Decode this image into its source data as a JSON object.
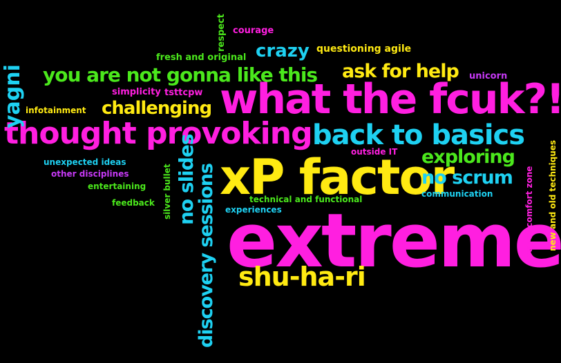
{
  "colors": {
    "background": "#000000",
    "magenta": "#ff1fe0",
    "cyan": "#1ed1f2",
    "yellow": "#ffea12",
    "green": "#4be81c",
    "purple": "#c639f5"
  },
  "words": {
    "extreme": "extreme",
    "what_the_fcuk": "what the fcuk?!",
    "xp_factor": "xP factor",
    "thought_provoking": "thought provoking",
    "back_to_basics": "back to basics",
    "shu_ha_ri": "shu-ha-ri",
    "discovery_sessions": "discovery sessions",
    "no_slides": "no slides",
    "you_are_not_gonna_like_this": "you are not gonna like this",
    "ask_for_help": "ask for help",
    "challenging": "challenging",
    "yagni": "yagni",
    "crazy": "crazy",
    "exploring": "exploring",
    "no_scrum": "no scrum",
    "questioning_agile": "questioning agile",
    "fresh_and_original": "fresh and original",
    "courage": "courage",
    "respect": "respect",
    "unicorn": "unicorn",
    "simplicity": "simplicity",
    "tsttcpw": "tsttcpw",
    "infotainment": "infotainment",
    "outside_it": "outside IT",
    "unexpected_ideas": "unexpected ideas",
    "other_disciplines": "other disciplines",
    "entertaining": "entertaining",
    "feedback": "feedback",
    "silver_bullet": "silver bullet",
    "technical_and_functional": "technical and functional",
    "experiences": "experiences",
    "communication": "communication",
    "out_of_comfort_zone": "out of comfort zone",
    "new_and_old_techniques": "new and old techniques"
  }
}
